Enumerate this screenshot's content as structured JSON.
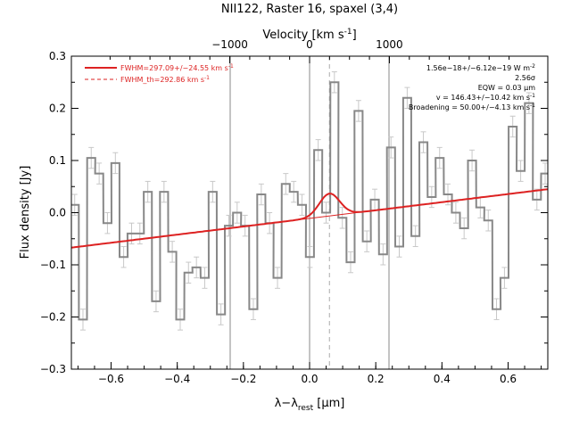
{
  "chart_data": {
    "type": "line",
    "title": "NII122, Raster 16, spaxel (3,4)",
    "xlabel": "λ−λ",
    "xlabel_sub": "rest",
    "xlabel_unit": " [μm]",
    "ylabel": "Flux density [Jy]",
    "top_axis_label": "Velocity [km s",
    "top_axis_label_sup": "-1",
    "top_axis_label_end": "]",
    "xlim": [
      -0.72,
      0.72
    ],
    "ylim": [
      -0.3,
      0.3
    ],
    "x_ticks": [
      -0.6,
      -0.4,
      -0.2,
      0.0,
      0.2,
      0.4,
      0.6
    ],
    "x_tick_labels": [
      "−0.6",
      "−0.4",
      "−0.2",
      "0.0",
      "0.2",
      "0.4",
      "0.6"
    ],
    "y_ticks": [
      -0.3,
      -0.2,
      -0.1,
      0.0,
      0.1,
      0.2,
      0.3
    ],
    "y_tick_labels": [
      "−0.3",
      "−0.2",
      "−0.1",
      "0.0",
      "0.1",
      "0.2",
      "0.3"
    ],
    "top_ticks_velocity": [
      -1000,
      0,
      1000
    ],
    "top_tick_labels": [
      "−1000",
      "0",
      "1000"
    ],
    "velocity_per_micron": 4146,
    "vertical_lines_solid": [
      -0.24,
      0.0,
      0.24
    ],
    "vertical_line_dashed": 0.06,
    "legend": [
      {
        "label": "FWHM=297.09+/−24.55 km s",
        "sup": "-1",
        "style": "solid",
        "color": "#dd2222"
      },
      {
        "label": "FWHM_th=292.86 km s",
        "sup": "-1",
        "style": "dashed",
        "color": "#dd2222"
      }
    ],
    "annotations": [
      {
        "text": "1.56e−18+/−6.12e−19 W m",
        "sup": "-2"
      },
      {
        "text": "2.56σ",
        "sup": ""
      },
      {
        "text": "EQW = 0.03 μm",
        "sup": ""
      },
      {
        "text": "v = 146.43+/−10.42 km s",
        "sup": "-1"
      },
      {
        "text": "Broadening = 50.00+/−4.13 km s",
        "sup": "-1"
      }
    ],
    "series": [
      {
        "name": "spectrum",
        "style": "histogram",
        "color": "#888888",
        "bin_width": 0.0245,
        "x": [
          -0.71,
          -0.685,
          -0.66,
          -0.636,
          -0.611,
          -0.587,
          -0.562,
          -0.538,
          -0.513,
          -0.489,
          -0.464,
          -0.44,
          -0.415,
          -0.391,
          -0.366,
          -0.342,
          -0.317,
          -0.293,
          -0.268,
          -0.244,
          -0.219,
          -0.195,
          -0.17,
          -0.146,
          -0.121,
          -0.097,
          -0.072,
          -0.048,
          -0.023,
          0.001,
          0.026,
          0.05,
          0.075,
          0.099,
          0.124,
          0.148,
          0.173,
          0.197,
          0.222,
          0.246,
          0.271,
          0.295,
          0.32,
          0.344,
          0.369,
          0.393,
          0.418,
          0.442,
          0.467,
          0.491,
          0.516,
          0.54,
          0.565,
          0.589,
          0.614,
          0.638,
          0.663,
          0.687,
          0.712
        ],
        "values": [
          0.015,
          -0.205,
          0.105,
          0.075,
          -0.02,
          0.095,
          -0.085,
          -0.04,
          -0.04,
          0.04,
          -0.17,
          0.04,
          -0.075,
          -0.205,
          -0.115,
          -0.105,
          -0.125,
          0.04,
          -0.195,
          -0.025,
          0.0,
          -0.025,
          -0.185,
          0.035,
          -0.02,
          -0.125,
          0.055,
          0.04,
          0.015,
          -0.085,
          0.12,
          0.0,
          0.25,
          -0.01,
          -0.095,
          0.195,
          -0.055,
          0.025,
          -0.08,
          0.125,
          -0.065,
          0.22,
          -0.045,
          0.135,
          0.03,
          0.105,
          0.035,
          0.0,
          -0.03,
          0.1,
          0.01,
          -0.015,
          -0.185,
          -0.125,
          0.165,
          0.08,
          0.21,
          0.025,
          0.075
        ],
        "errors": [
          0.02,
          0.02,
          0.02,
          0.02,
          0.02,
          0.02,
          0.02,
          0.02,
          0.02,
          0.02,
          0.02,
          0.02,
          0.02,
          0.02,
          0.02,
          0.02,
          0.02,
          0.02,
          0.02,
          0.02,
          0.02,
          0.02,
          0.02,
          0.02,
          0.02,
          0.02,
          0.02,
          0.02,
          0.02,
          0.02,
          0.02,
          0.02,
          0.02,
          0.02,
          0.02,
          0.02,
          0.02,
          0.02,
          0.02,
          0.02,
          0.02,
          0.02,
          0.02,
          0.02,
          0.02,
          0.02,
          0.02,
          0.02,
          0.02,
          0.02,
          0.02,
          0.02,
          0.02,
          0.02,
          0.02,
          0.02,
          0.02,
          0.02,
          0.02
        ]
      },
      {
        "name": "FWHM=297.09+/−24.55 km s-1",
        "style": "line",
        "color": "#dd2222",
        "continuum_at": [
          [
            -0.72,
            -0.067
          ],
          [
            0.72,
            0.045
          ]
        ],
        "gaussian_center": 0.06,
        "gaussian_amplitude": 0.043,
        "gaussian_fwhm": 0.072,
        "gaussian_range": [
          -0.08,
          0.2
        ]
      },
      {
        "name": "FWHM_th=292.86 km s-1",
        "style": "thin-line",
        "color": "#dd2222",
        "continuum_at": [
          [
            -0.72,
            -0.067
          ],
          [
            0.72,
            0.045
          ]
        ]
      }
    ]
  }
}
